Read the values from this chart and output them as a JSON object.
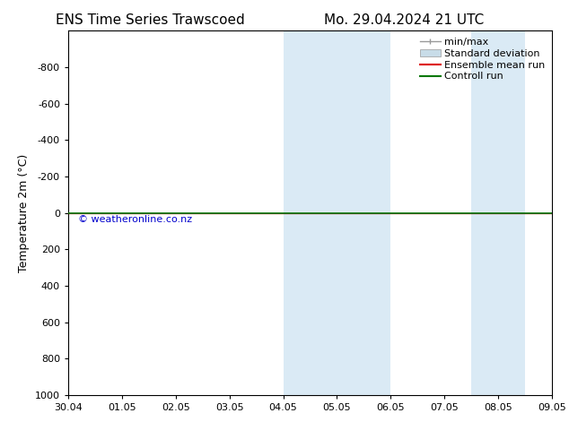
{
  "title": "ENS Time Series Trawscoed",
  "title_right": "Mo. 29.04.2024 21 UTC",
  "ylabel": "Temperature 2m (°C)",
  "watermark": "© weatheronline.co.nz",
  "xticklabels": [
    "30.04",
    "01.05",
    "02.05",
    "03.05",
    "04.05",
    "05.05",
    "06.05",
    "07.05",
    "08.05",
    "09.05"
  ],
  "x_positions": [
    0,
    1,
    2,
    3,
    4,
    5,
    6,
    7,
    8,
    9
  ],
  "xlim": [
    -0.0,
    9.0
  ],
  "ylim": [
    1000,
    -1000
  ],
  "yticks": [
    -800,
    -600,
    -400,
    -200,
    0,
    200,
    400,
    600,
    800,
    1000
  ],
  "shaded_bands": [
    [
      4.0,
      5.0
    ],
    [
      5.0,
      6.0
    ],
    [
      7.5,
      8.0
    ],
    [
      8.0,
      8.5
    ]
  ],
  "shade_color": "#daeaf5",
  "control_run_y": 0,
  "control_run_color": "#007700",
  "ensemble_mean_color": "#dd0000",
  "background_color": "#ffffff",
  "legend_minmax_color": "#999999",
  "legend_stddev_color": "#c8dce8",
  "font_size_title": 11,
  "font_size_axis": 8,
  "font_size_legend": 8,
  "font_size_ylabel": 9
}
